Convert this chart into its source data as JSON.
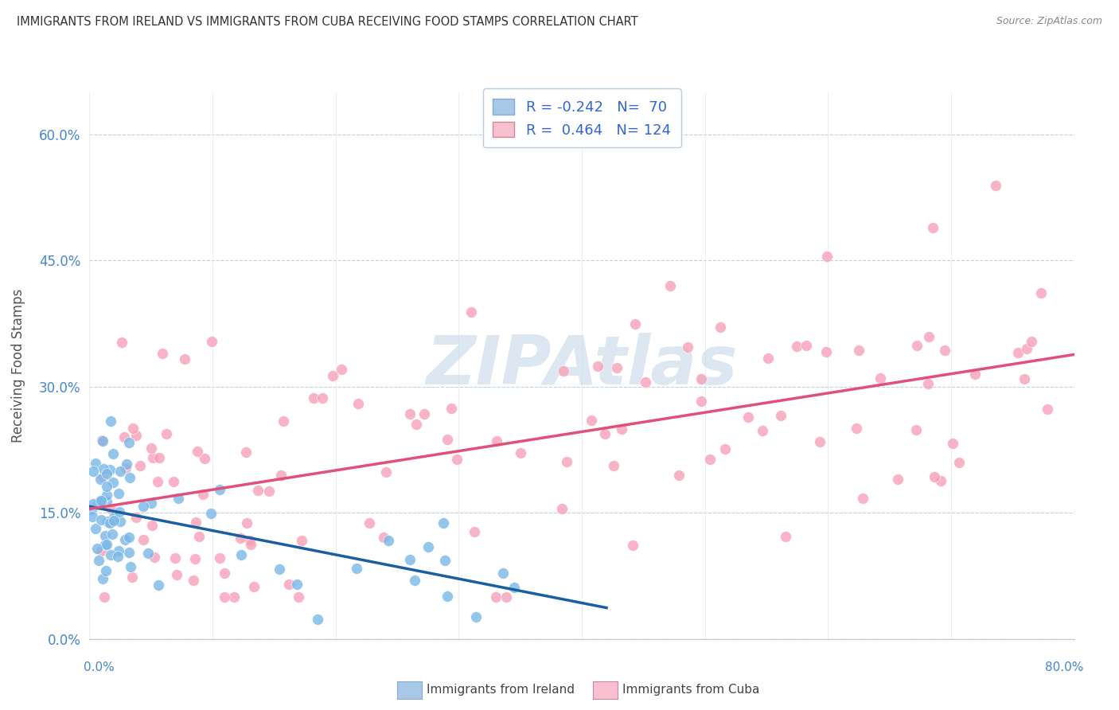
{
  "title": "IMMIGRANTS FROM IRELAND VS IMMIGRANTS FROM CUBA RECEIVING FOOD STAMPS CORRELATION CHART",
  "source": "Source: ZipAtlas.com",
  "ylabel": "Receiving Food Stamps",
  "xlim": [
    0,
    80
  ],
  "ylim": [
    0,
    65
  ],
  "watermark": "ZIPAtlas",
  "ireland_R": -0.242,
  "ireland_N": 70,
  "cuba_R": 0.464,
  "cuba_N": 124,
  "ireland_scatter_color": "#7ab8e8",
  "cuba_scatter_color": "#f8a0b8",
  "ireland_line_color": "#1a5fa0",
  "cuba_line_color": "#e0507a",
  "background_color": "#ffffff",
  "grid_color": "#c0d0e0",
  "legend_patch_ireland": "#a8c8e8",
  "legend_patch_cuba": "#f8c0d0",
  "title_color": "#333333",
  "axis_tick_color": "#4488cc",
  "ytick_vals": [
    0,
    15,
    30,
    45,
    60
  ],
  "xtick_minor_vals": [
    0,
    10,
    20,
    30,
    40,
    50,
    60,
    70,
    80
  ]
}
